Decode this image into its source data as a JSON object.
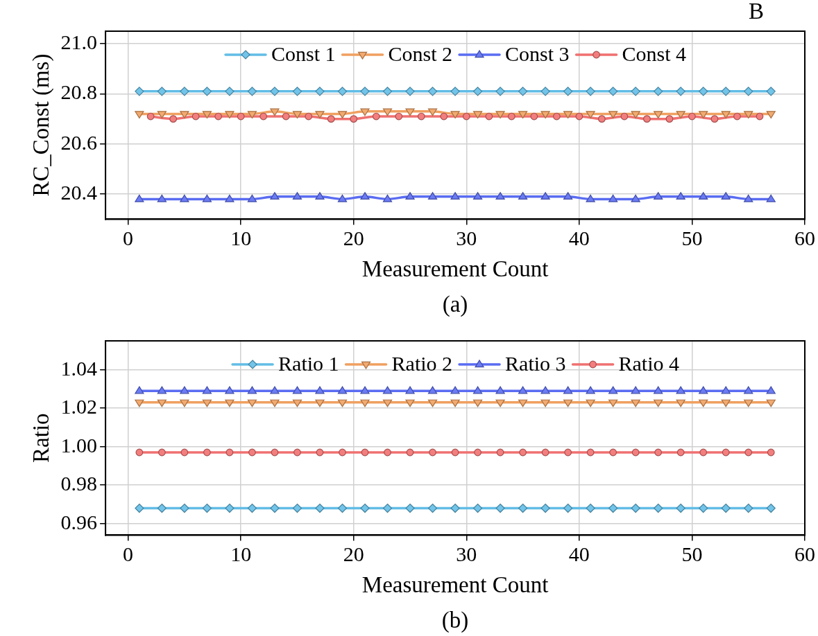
{
  "chart_data": [
    {
      "type": "line",
      "xlabel": "Measurement Count",
      "ylabel": "RC_Const (ms)",
      "annotations": [
        "B",
        "(a)"
      ],
      "xlim": [
        -2,
        60
      ],
      "xticks": [
        0,
        10,
        20,
        30,
        40,
        50,
        60
      ],
      "ylim": [
        20.3,
        21.05
      ],
      "yticks": [
        {
          "value": 20.4,
          "label": "20.4"
        },
        {
          "value": 20.6,
          "label": "20.6"
        },
        {
          "value": 20.8,
          "label": "20.8"
        },
        {
          "value": 21,
          "label": "21.0"
        }
      ],
      "grid": true,
      "legend": "top",
      "line_style": "solid",
      "x": [
        1,
        3,
        5,
        7,
        9,
        11,
        13,
        15,
        17,
        19,
        21,
        23,
        25,
        27,
        29,
        31,
        33,
        35,
        37,
        39,
        41,
        43,
        45,
        47,
        49,
        51,
        53,
        55,
        57
      ],
      "series": [
        {
          "name": "Const 1",
          "color": "#62bde6",
          "marker": "diamond",
          "values": [
            20.81,
            20.81,
            20.81,
            20.81,
            20.81,
            20.81,
            20.81,
            20.81,
            20.81,
            20.81,
            20.81,
            20.81,
            20.81,
            20.81,
            20.81,
            20.81,
            20.81,
            20.81,
            20.81,
            20.81,
            20.81,
            20.81,
            20.81,
            20.81,
            20.81,
            20.81,
            20.81,
            20.81,
            20.81
          ]
        },
        {
          "name": "Const 2",
          "color": "#f0a060",
          "marker": "triangle_down",
          "values": [
            20.72,
            20.72,
            20.72,
            20.72,
            20.72,
            20.72,
            20.73,
            20.72,
            20.72,
            20.72,
            20.73,
            20.73,
            20.73,
            20.73,
            20.72,
            20.72,
            20.72,
            20.72,
            20.72,
            20.72,
            20.72,
            20.72,
            20.72,
            20.72,
            20.72,
            20.72,
            20.72,
            20.72,
            20.72
          ]
        },
        {
          "name": "Const 3",
          "color": "#5a6cf2",
          "marker": "triangle",
          "values": [
            20.38,
            20.38,
            20.38,
            20.38,
            20.38,
            20.38,
            20.39,
            20.39,
            20.39,
            20.38,
            20.39,
            20.38,
            20.39,
            20.39,
            20.39,
            20.39,
            20.39,
            20.39,
            20.39,
            20.39,
            20.38,
            20.38,
            20.38,
            20.39,
            20.39,
            20.39,
            20.39,
            20.38,
            20.38
          ]
        },
        {
          "name": "Const 4",
          "color": "#f07070",
          "marker": "circle",
          "x": [
            2,
            4,
            6,
            8,
            10,
            12,
            14,
            16,
            18,
            20,
            22,
            24,
            26,
            28,
            30,
            32,
            34,
            36,
            38,
            40,
            42,
            44,
            46,
            48,
            50,
            52,
            54,
            56
          ],
          "values": [
            20.71,
            20.7,
            20.71,
            20.71,
            20.71,
            20.71,
            20.71,
            20.71,
            20.7,
            20.7,
            20.71,
            20.71,
            20.71,
            20.71,
            20.71,
            20.71,
            20.71,
            20.71,
            20.71,
            20.71,
            20.7,
            20.71,
            20.7,
            20.7,
            20.71,
            20.7,
            20.71,
            20.71
          ]
        }
      ]
    },
    {
      "type": "line",
      "xlabel": "Measurement Count",
      "ylabel": "Ratio",
      "annotations": [
        "(b)"
      ],
      "xlim": [
        -2,
        60
      ],
      "xticks": [
        0,
        10,
        20,
        30,
        40,
        50,
        60
      ],
      "ylim": [
        0.954,
        1.055
      ],
      "yticks": [
        {
          "value": 0.96,
          "label": "0.96"
        },
        {
          "value": 0.98,
          "label": "0.98"
        },
        {
          "value": 1,
          "label": "1.00"
        },
        {
          "value": 1.02,
          "label": "1.02"
        },
        {
          "value": 1.04,
          "label": "1.04"
        }
      ],
      "grid": true,
      "legend": "top",
      "line_style": "solid",
      "x": [
        1,
        3,
        5,
        7,
        9,
        11,
        13,
        15,
        17,
        19,
        21,
        23,
        25,
        27,
        29,
        31,
        33,
        35,
        37,
        39,
        41,
        43,
        45,
        47,
        49,
        51,
        53,
        55,
        57
      ],
      "series": [
        {
          "name": "Ratio 1",
          "color": "#62bde6",
          "marker": "diamond",
          "values": [
            0.968,
            0.968,
            0.968,
            0.968,
            0.968,
            0.968,
            0.968,
            0.968,
            0.968,
            0.968,
            0.968,
            0.968,
            0.968,
            0.968,
            0.968,
            0.968,
            0.968,
            0.968,
            0.968,
            0.968,
            0.968,
            0.968,
            0.968,
            0.968,
            0.968,
            0.968,
            0.968,
            0.968,
            0.968
          ]
        },
        {
          "name": "Ratio 2",
          "color": "#f0a060",
          "marker": "triangle_down",
          "values": [
            1.023,
            1.023,
            1.023,
            1.023,
            1.023,
            1.023,
            1.023,
            1.023,
            1.023,
            1.023,
            1.023,
            1.023,
            1.023,
            1.023,
            1.023,
            1.023,
            1.023,
            1.023,
            1.023,
            1.023,
            1.023,
            1.023,
            1.023,
            1.023,
            1.023,
            1.023,
            1.023,
            1.023,
            1.023
          ]
        },
        {
          "name": "Ratio 3",
          "color": "#5a6cf2",
          "marker": "triangle",
          "values": [
            1.029,
            1.029,
            1.029,
            1.029,
            1.029,
            1.029,
            1.029,
            1.029,
            1.029,
            1.029,
            1.029,
            1.029,
            1.029,
            1.029,
            1.029,
            1.029,
            1.029,
            1.029,
            1.029,
            1.029,
            1.029,
            1.029,
            1.029,
            1.029,
            1.029,
            1.029,
            1.029,
            1.029,
            1.029
          ]
        },
        {
          "name": "Ratio 4",
          "color": "#f07070",
          "marker": "circle",
          "values": [
            0.997,
            0.997,
            0.997,
            0.997,
            0.997,
            0.997,
            0.997,
            0.997,
            0.997,
            0.997,
            0.997,
            0.997,
            0.997,
            0.997,
            0.997,
            0.997,
            0.997,
            0.997,
            0.997,
            0.997,
            0.997,
            0.997,
            0.997,
            0.997,
            0.997,
            0.997,
            0.997,
            0.997,
            0.997
          ]
        }
      ]
    }
  ]
}
